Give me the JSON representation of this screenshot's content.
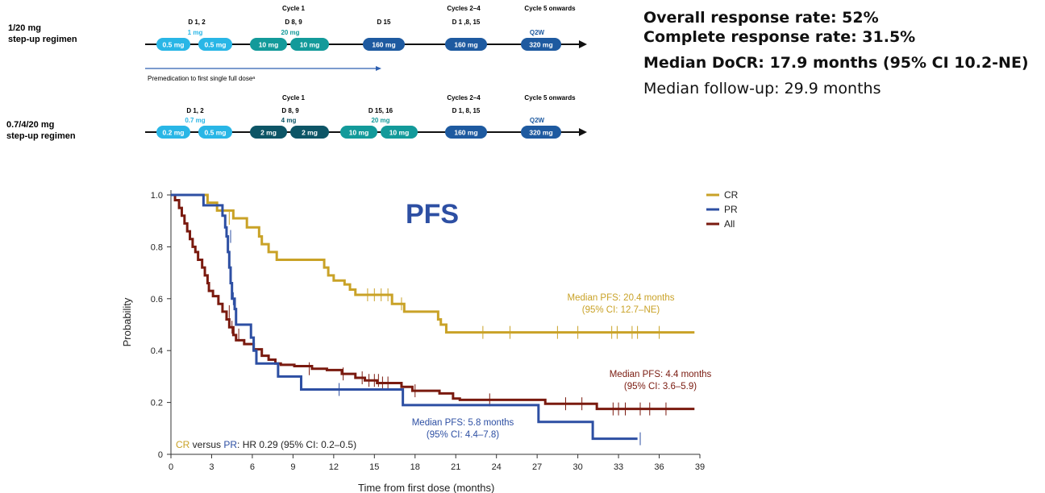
{
  "regimens": [
    {
      "name_line1": "1/20 mg",
      "name_line2": "step-up regimen",
      "headers": [
        {
          "text": "Cycle 1",
          "col": 0
        },
        {
          "text": "Cycles 2–4",
          "col": 1
        },
        {
          "text": "Cycle 5 onwards",
          "col": 2
        }
      ],
      "day_labels": [
        "D 1, 2",
        "D 8, 9",
        "D 15",
        "D 1 ,8, 15"
      ],
      "group_labels": [
        {
          "text": "1 mg",
          "color": "#29b6e6"
        },
        {
          "text": "20 mg",
          "color": "#139a9a"
        },
        {
          "text": "Q2W",
          "color": "#1e5aa0"
        }
      ],
      "doses": [
        "0.5 mg",
        "0.5 mg",
        "10 mg",
        "10 mg",
        "160 mg",
        "160 mg",
        "320 mg"
      ],
      "premed_text": "Premedication to first single full doseᵃ"
    },
    {
      "name_line1": "0.7/4/20 mg",
      "name_line2": "step-up regimen",
      "headers": [
        {
          "text": "Cycle 1",
          "col": 0
        },
        {
          "text": "Cycles 2–4",
          "col": 1
        },
        {
          "text": "Cycle 5 onwards",
          "col": 2
        }
      ],
      "day_labels": [
        "D 1, 2",
        "D 8, 9",
        "D 15, 16",
        "D 1, 8, 15"
      ],
      "group_labels": [
        {
          "text": "0.7 mg",
          "color": "#29b6e6"
        },
        {
          "text": "4 mg",
          "color": "#0d5566"
        },
        {
          "text": "20 mg",
          "color": "#139a9a"
        },
        {
          "text": "Q2W",
          "color": "#1e5aa0"
        }
      ],
      "doses": [
        "0.2 mg",
        "0.5 mg",
        "2 mg",
        "2 mg",
        "10 mg",
        "10 mg",
        "160 mg",
        "320 mg"
      ]
    }
  ],
  "stats": {
    "orr": "Overall response rate: 52%",
    "crr": "Complete response rate: 31.5%",
    "docr": "Median DoCR: 17.9 months (95% CI 10.2-NE)",
    "followup": "Median follow-up: 29.9 months"
  },
  "colors": {
    "cr": "#c9a227",
    "pr": "#2d4fa3",
    "all": "#7a1a0f",
    "title": "#2d4fa3",
    "light": "#29b6e6",
    "teal": "#139a9a",
    "dark": "#0d5566",
    "navy": "#1e5aa0"
  },
  "chart_data": {
    "type": "line",
    "title": "PFS",
    "xlabel": "Time from first dose (months)",
    "ylabel": "Probability",
    "xlim": [
      0,
      39
    ],
    "ylim": [
      0,
      1.0
    ],
    "xticks": [
      0,
      3,
      6,
      9,
      12,
      15,
      18,
      21,
      24,
      27,
      30,
      33,
      36,
      39
    ],
    "yticks": [
      0,
      0.2,
      0.4,
      0.6,
      0.8,
      1.0
    ],
    "legend_position": "top-right",
    "series": [
      {
        "name": "CR",
        "color_key": "cr",
        "steps": [
          [
            0,
            1.0
          ],
          [
            2.7,
            0.97
          ],
          [
            3.4,
            0.94
          ],
          [
            4.6,
            0.91
          ],
          [
            5.6,
            0.875
          ],
          [
            6.5,
            0.84
          ],
          [
            6.7,
            0.81
          ],
          [
            7.2,
            0.78
          ],
          [
            7.8,
            0.75
          ],
          [
            11.3,
            0.72
          ],
          [
            11.6,
            0.69
          ],
          [
            12,
            0.67
          ],
          [
            12.8,
            0.655
          ],
          [
            13.2,
            0.635
          ],
          [
            13.6,
            0.615
          ],
          [
            16.3,
            0.58
          ],
          [
            17.2,
            0.55
          ],
          [
            19.7,
            0.52
          ],
          [
            19.9,
            0.5
          ],
          [
            20.3,
            0.47
          ],
          [
            38.6,
            0.47
          ]
        ],
        "censors": [
          [
            4.3,
            0.91
          ],
          [
            14.5,
            0.615
          ],
          [
            15,
            0.615
          ],
          [
            15.5,
            0.615
          ],
          [
            16,
            0.615
          ],
          [
            17,
            0.58
          ],
          [
            23,
            0.47
          ],
          [
            25,
            0.47
          ],
          [
            28.5,
            0.47
          ],
          [
            30,
            0.47
          ],
          [
            32.5,
            0.47
          ],
          [
            32.9,
            0.47
          ],
          [
            34,
            0.47
          ],
          [
            34.4,
            0.47
          ],
          [
            36,
            0.47
          ]
        ],
        "annotation": [
          "Median PFS: 20.4 months",
          "(95% CI: 12.7–NE)"
        ]
      },
      {
        "name": "PR",
        "color_key": "pr",
        "steps": [
          [
            0,
            1.0
          ],
          [
            2.4,
            0.96
          ],
          [
            3.8,
            0.92
          ],
          [
            4,
            0.875
          ],
          [
            4.1,
            0.84
          ],
          [
            4.2,
            0.78
          ],
          [
            4.3,
            0.72
          ],
          [
            4.4,
            0.66
          ],
          [
            4.5,
            0.6
          ],
          [
            4.7,
            0.56
          ],
          [
            4.8,
            0.5
          ],
          [
            5.9,
            0.45
          ],
          [
            6.1,
            0.4
          ],
          [
            6.3,
            0.35
          ],
          [
            7.9,
            0.3
          ],
          [
            9.6,
            0.25
          ],
          [
            17.1,
            0.19
          ],
          [
            27.1,
            0.125
          ],
          [
            31.1,
            0.06
          ],
          [
            34.4,
            0.06
          ]
        ],
        "censors": [
          [
            4.4,
            0.84
          ],
          [
            4.6,
            0.6
          ],
          [
            12.4,
            0.25
          ],
          [
            34.6,
            0.06
          ]
        ],
        "annotation": [
          "Median PFS: 5.8 months",
          "(95% CI: 4.4–7.8)"
        ]
      },
      {
        "name": "All",
        "color_key": "all",
        "steps": [
          [
            0,
            1.0
          ],
          [
            0.3,
            0.98
          ],
          [
            0.6,
            0.95
          ],
          [
            0.8,
            0.92
          ],
          [
            1,
            0.89
          ],
          [
            1.2,
            0.86
          ],
          [
            1.4,
            0.83
          ],
          [
            1.6,
            0.8
          ],
          [
            1.8,
            0.78
          ],
          [
            2,
            0.75
          ],
          [
            2.3,
            0.72
          ],
          [
            2.5,
            0.69
          ],
          [
            2.7,
            0.66
          ],
          [
            2.8,
            0.63
          ],
          [
            3.1,
            0.61
          ],
          [
            3.5,
            0.58
          ],
          [
            3.8,
            0.55
          ],
          [
            4.1,
            0.52
          ],
          [
            4.3,
            0.49
          ],
          [
            4.6,
            0.46
          ],
          [
            4.8,
            0.44
          ],
          [
            5.4,
            0.425
          ],
          [
            6.1,
            0.405
          ],
          [
            6.7,
            0.38
          ],
          [
            7.2,
            0.365
          ],
          [
            7.7,
            0.35
          ],
          [
            8.1,
            0.345
          ],
          [
            9.1,
            0.34
          ],
          [
            10.4,
            0.33
          ],
          [
            11.5,
            0.325
          ],
          [
            12.6,
            0.31
          ],
          [
            13.6,
            0.295
          ],
          [
            14.3,
            0.285
          ],
          [
            15.2,
            0.275
          ],
          [
            17,
            0.26
          ],
          [
            17.8,
            0.245
          ],
          [
            19.8,
            0.235
          ],
          [
            20.8,
            0.215
          ],
          [
            21.3,
            0.21
          ],
          [
            27.6,
            0.195
          ],
          [
            31.4,
            0.175
          ],
          [
            38.6,
            0.175
          ]
        ],
        "censors": [
          [
            4.3,
            0.55
          ],
          [
            4.5,
            0.49
          ],
          [
            5,
            0.46
          ],
          [
            10.2,
            0.33
          ],
          [
            12.7,
            0.31
          ],
          [
            14.1,
            0.295
          ],
          [
            14.6,
            0.285
          ],
          [
            15,
            0.285
          ],
          [
            15.3,
            0.285
          ],
          [
            15.6,
            0.275
          ],
          [
            16,
            0.275
          ],
          [
            18,
            0.245
          ],
          [
            23.5,
            0.21
          ],
          [
            29.1,
            0.195
          ],
          [
            30.3,
            0.195
          ],
          [
            32.6,
            0.175
          ],
          [
            33,
            0.175
          ],
          [
            33.5,
            0.175
          ],
          [
            34.6,
            0.175
          ],
          [
            35.3,
            0.175
          ],
          [
            36.5,
            0.175
          ]
        ],
        "annotation": [
          "Median PFS: 4.4 months",
          "(95% CI: 3.6–5.9)"
        ]
      }
    ],
    "hr_text": {
      "cr": "CR",
      "versus": " versus ",
      "pr": "PR",
      "rest": ": HR 0.29 (95% CI: 0.2–0.5)"
    }
  }
}
